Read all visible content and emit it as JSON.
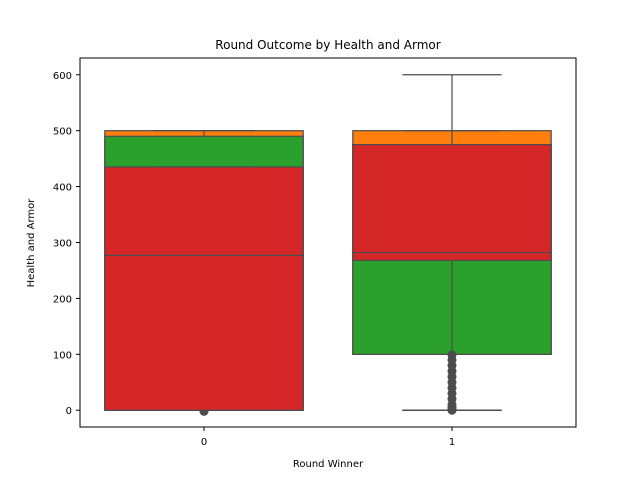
{
  "chart_data": {
    "type": "box",
    "title": "Round Outcome by Health and Armor",
    "xlabel": "Round Winner",
    "ylabel": "Health and Armor",
    "categories": [
      "0",
      "1"
    ],
    "ylim": [
      -30,
      630
    ],
    "yticks": [
      0,
      100,
      200,
      300,
      400,
      500,
      600
    ],
    "grid": false,
    "series": [
      {
        "color": "#ff7f0e",
        "boxes": [
          {
            "q1": 0,
            "median": 400,
            "q3": 500,
            "whisker_low": 0,
            "whisker_high": 500,
            "outliers": []
          },
          {
            "q1": 100,
            "median": 385,
            "q3": 500,
            "whisker_low": 0,
            "whisker_high": 600,
            "outliers": []
          }
        ]
      },
      {
        "color": "#2ca02c",
        "boxes": [
          {
            "q1": 0,
            "median": 435,
            "q3": 490,
            "whisker_low": 0,
            "whisker_high": 500,
            "outliers": [
              -2
            ]
          },
          {
            "q1": 100,
            "median": 268,
            "q3": 475,
            "whisker_low": 0,
            "whisker_high": 500,
            "outliers": [
              0,
              2,
              5,
              10,
              20,
              30,
              40,
              50,
              60,
              70,
              80,
              90,
              99
            ]
          }
        ]
      },
      {
        "color": "#d62728",
        "boxes": [
          {
            "q1": 0,
            "median": 277,
            "q3": 435,
            "whisker_low": 0,
            "whisker_high": 435,
            "outliers": []
          },
          {
            "q1": 268,
            "median": 282,
            "q3": 475,
            "whisker_low": 0,
            "whisker_high": 475,
            "outliers": []
          }
        ]
      }
    ]
  }
}
